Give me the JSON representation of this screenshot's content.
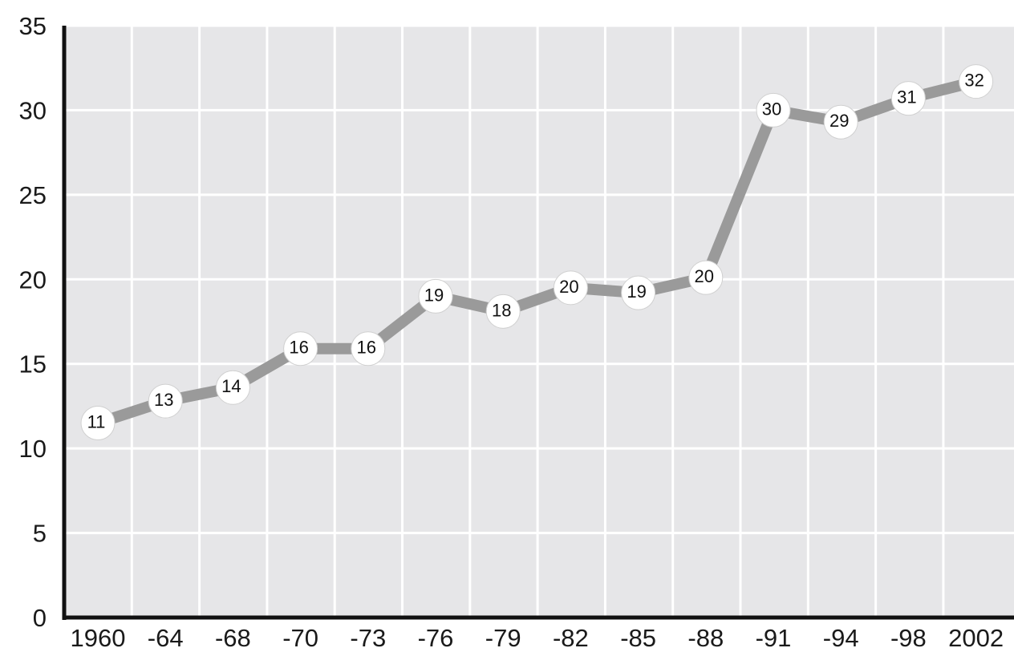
{
  "chart_data": {
    "type": "line",
    "categories": [
      "1960",
      "-64",
      "-68",
      "-70",
      "-73",
      "-76",
      "-79",
      "-82",
      "-85",
      "-88",
      "-91",
      "-94",
      "-98",
      "2002"
    ],
    "values": [
      11,
      13,
      14,
      16,
      16,
      19,
      18,
      20,
      19,
      20,
      30,
      29,
      31,
      32
    ],
    "plotted_values": [
      11.5,
      12.8,
      13.6,
      15.9,
      15.9,
      19.0,
      18.1,
      19.5,
      19.2,
      20.1,
      30.0,
      29.3,
      30.7,
      31.7
    ],
    "yticks": [
      0,
      5,
      10,
      15,
      20,
      25,
      30,
      35
    ],
    "ylim": [
      0,
      35
    ],
    "grid": true,
    "title": "",
    "xlabel": "",
    "ylabel": "",
    "colors": {
      "plot_background": "#e6e6e8",
      "grid": "#ffffff",
      "line": "#9a9a9a",
      "marker": "#ffffff",
      "axis": "#111111"
    }
  }
}
